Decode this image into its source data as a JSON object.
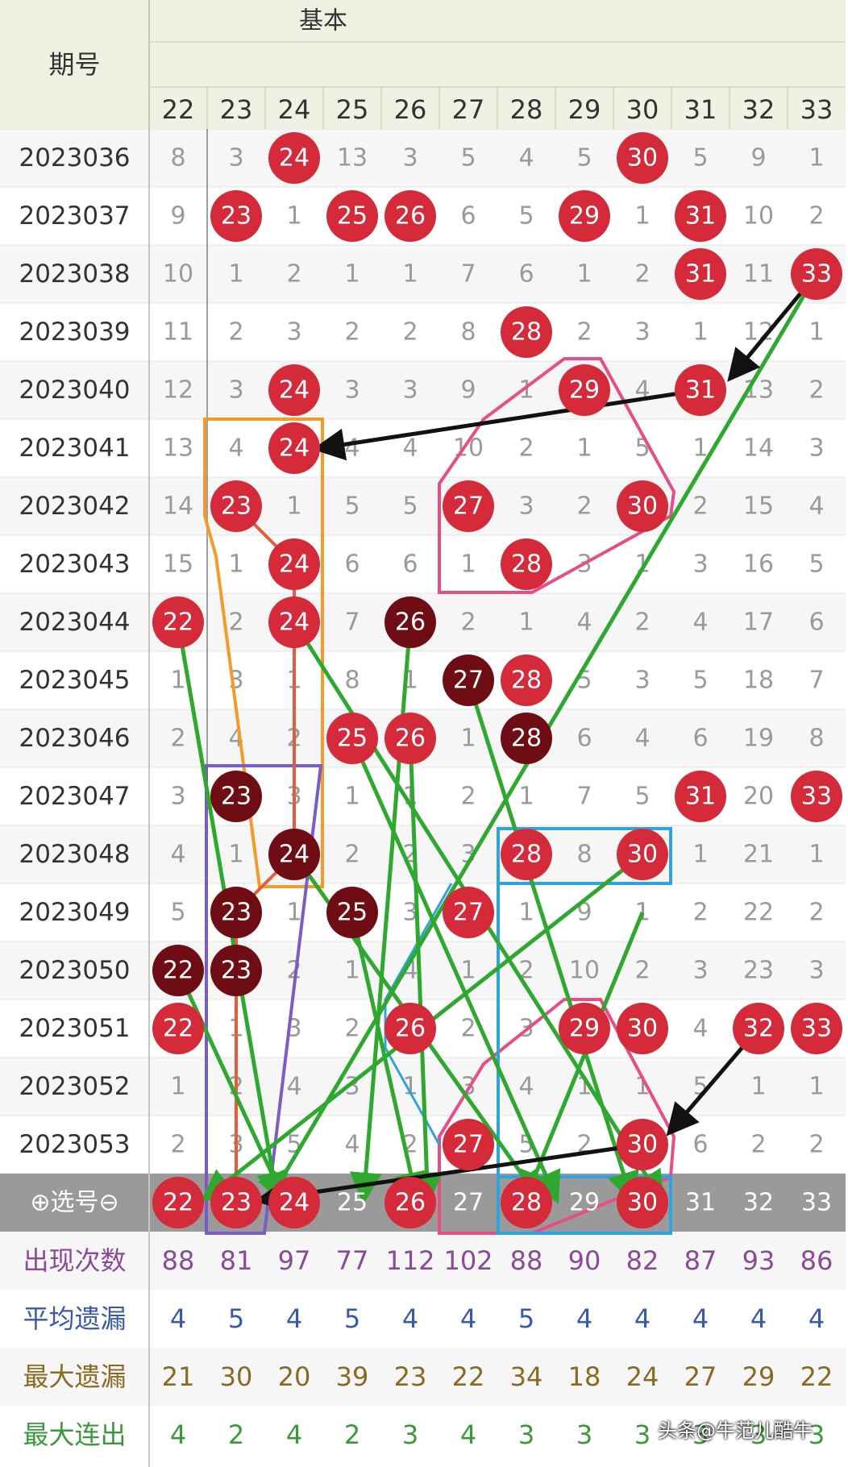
{
  "header": {
    "period_label": "期号",
    "group_label": "基本"
  },
  "chart_data": {
    "type": "table",
    "columns": [
      "22",
      "23",
      "24",
      "25",
      "26",
      "27",
      "28",
      "29",
      "30",
      "31",
      "32",
      "33"
    ],
    "rows": [
      {
        "period": "2023036",
        "cells": [
          8,
          3,
          "24",
          13,
          3,
          5,
          4,
          5,
          "30",
          5,
          9,
          1
        ]
      },
      {
        "period": "2023037",
        "cells": [
          9,
          "23",
          1,
          "25",
          "26",
          6,
          5,
          "29",
          1,
          "31",
          10,
          2
        ]
      },
      {
        "period": "2023038",
        "cells": [
          10,
          1,
          2,
          1,
          1,
          7,
          6,
          1,
          2,
          "31",
          11,
          "33"
        ]
      },
      {
        "period": "2023039",
        "cells": [
          11,
          2,
          3,
          2,
          2,
          8,
          "28",
          2,
          3,
          1,
          12,
          1
        ]
      },
      {
        "period": "2023040",
        "cells": [
          12,
          3,
          "24",
          3,
          3,
          9,
          1,
          "29",
          4,
          "31",
          13,
          2
        ]
      },
      {
        "period": "2023041",
        "cells": [
          13,
          4,
          "24",
          4,
          4,
          10,
          2,
          1,
          5,
          1,
          14,
          3
        ]
      },
      {
        "period": "2023042",
        "cells": [
          14,
          "23",
          1,
          5,
          5,
          "27",
          3,
          2,
          "30",
          2,
          15,
          4
        ]
      },
      {
        "period": "2023043",
        "cells": [
          15,
          1,
          "24",
          6,
          6,
          1,
          "28",
          3,
          1,
          3,
          16,
          5
        ]
      },
      {
        "period": "2023044",
        "cells": [
          "22",
          2,
          "24",
          7,
          "26",
          2,
          1,
          4,
          2,
          4,
          17,
          6
        ]
      },
      {
        "period": "2023045",
        "cells": [
          1,
          3,
          1,
          8,
          1,
          "27",
          "28",
          5,
          3,
          5,
          18,
          7
        ]
      },
      {
        "period": "2023046",
        "cells": [
          2,
          4,
          2,
          "25",
          "26",
          1,
          "28",
          6,
          4,
          6,
          19,
          8
        ]
      },
      {
        "period": "2023047",
        "cells": [
          3,
          "23",
          3,
          1,
          1,
          2,
          1,
          7,
          5,
          "31",
          20,
          "33"
        ]
      },
      {
        "period": "2023048",
        "cells": [
          4,
          1,
          "24",
          2,
          2,
          3,
          "28",
          8,
          "30",
          1,
          21,
          1
        ]
      },
      {
        "period": "2023049",
        "cells": [
          5,
          "23",
          1,
          "25",
          3,
          "27",
          1,
          9,
          1,
          2,
          22,
          2
        ]
      },
      {
        "period": "2023050",
        "cells": [
          "22",
          "23",
          2,
          1,
          4,
          1,
          2,
          10,
          2,
          3,
          23,
          3
        ]
      },
      {
        "period": "2023051",
        "cells": [
          "22",
          1,
          3,
          2,
          "26",
          2,
          3,
          "29",
          "30",
          4,
          "32",
          "33"
        ]
      },
      {
        "period": "2023052",
        "cells": [
          1,
          2,
          4,
          3,
          1,
          3,
          4,
          1,
          1,
          5,
          1,
          1
        ]
      },
      {
        "period": "2023053",
        "cells": [
          2,
          3,
          5,
          4,
          2,
          "27",
          5,
          2,
          "30",
          6,
          2,
          2
        ]
      }
    ],
    "dark_balls": [
      [
        8,
        4
      ],
      [
        9,
        5
      ],
      [
        10,
        6
      ],
      [
        11,
        1
      ],
      [
        12,
        2
      ],
      [
        13,
        1
      ],
      [
        13,
        3
      ],
      [
        14,
        0
      ],
      [
        14,
        1
      ]
    ],
    "select_row": {
      "label": "⊕选号⊖",
      "values": [
        "22",
        "23",
        "24",
        "25",
        "26",
        "27",
        "28",
        "29",
        "30",
        "31",
        "32",
        "33"
      ],
      "selected": [
        true,
        true,
        true,
        false,
        true,
        false,
        true,
        false,
        true,
        false,
        false,
        false
      ]
    },
    "stats": [
      {
        "label": "出现次数",
        "values": [
          88,
          81,
          97,
          77,
          112,
          102,
          88,
          90,
          82,
          87,
          93,
          86
        ],
        "color": "#8a4a9a"
      },
      {
        "label": "平均遗漏",
        "values": [
          4,
          5,
          4,
          5,
          4,
          4,
          5,
          4,
          4,
          4,
          4,
          4
        ],
        "color": "#3a5aa8"
      },
      {
        "label": "最大遗漏",
        "values": [
          21,
          30,
          20,
          39,
          23,
          22,
          34,
          18,
          24,
          27,
          29,
          22
        ],
        "color": "#8a6a20"
      },
      {
        "label": "最大连出",
        "values": [
          4,
          2,
          4,
          2,
          3,
          4,
          3,
          3,
          3,
          3,
          3,
          3
        ],
        "color": "#3a9a3a"
      }
    ],
    "colors": {
      "ball": "#d42a3a",
      "ball_dark": "#6e0e14",
      "header_bg": "#f0f0e3",
      "select_bg": "#9a9a9a",
      "miss_text": "#9a9a9a",
      "green": "#2ea82e",
      "black": "#111111",
      "orange": "#f59a2a",
      "pink": "#e84d86",
      "purple": "#7b5cc4",
      "blue": "#2ea3dc",
      "red_line": "#e85a3a"
    }
  },
  "watermark": "头条@牛范儿酷牛"
}
